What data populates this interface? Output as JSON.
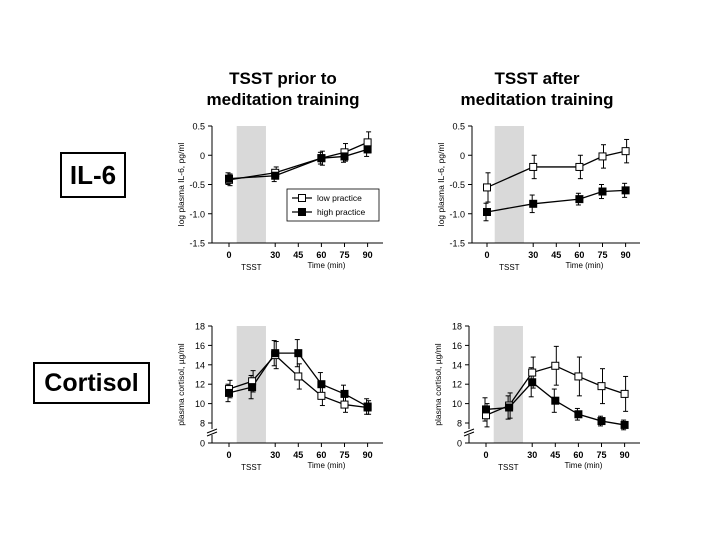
{
  "column_titles": {
    "left": [
      "TSST prior to",
      "meditation training"
    ],
    "right": [
      "TSST after",
      "meditation training"
    ]
  },
  "row_labels": {
    "il6": "IL-6",
    "cortisol": "Cortisol"
  },
  "chart_data": [
    {
      "id": "il6_prior",
      "type": "line",
      "ylabel": "log plasma IL-6, pg/ml",
      "xlabel": "Time (min)",
      "shade_label": "TSST",
      "x": [
        0,
        30,
        60,
        75,
        90
      ],
      "xticks": [
        "0",
        "30",
        "45",
        "60",
        "75",
        "90"
      ],
      "xtick_values": [
        0,
        30,
        45,
        60,
        75,
        90
      ],
      "ylim": [
        -1.5,
        0.5
      ],
      "yticks": [
        -1.5,
        -1.0,
        -0.5,
        0,
        0.5
      ],
      "ytick_labels": [
        "-1.5",
        "-1.0",
        "-0.5",
        "0",
        "0.5"
      ],
      "shade": [
        5,
        24
      ],
      "legend": [
        "low practice",
        "high practice"
      ],
      "series": [
        {
          "name": "low practice",
          "marker": "open-square",
          "values": [
            -0.42,
            -0.3,
            -0.05,
            0.05,
            0.22
          ],
          "errors": [
            0.1,
            0.1,
            0.12,
            0.15,
            0.18
          ]
        },
        {
          "name": "high practice",
          "marker": "filled-square",
          "values": [
            -0.4,
            -0.35,
            -0.05,
            -0.02,
            0.1
          ],
          "errors": [
            0.1,
            0.1,
            0.1,
            0.1,
            0.12
          ]
        }
      ]
    },
    {
      "id": "il6_after",
      "type": "line",
      "ylabel": "log plasma IL-6, pg/ml",
      "xlabel": "Time (min)",
      "shade_label": "TSST",
      "x": [
        0,
        30,
        60,
        75,
        90
      ],
      "xticks": [
        "0",
        "30",
        "45",
        "60",
        "75",
        "90"
      ],
      "xtick_values": [
        0,
        30,
        45,
        60,
        75,
        90
      ],
      "ylim": [
        -1.5,
        0.5
      ],
      "yticks": [
        -1.5,
        -1.0,
        -0.5,
        0,
        0.5
      ],
      "ytick_labels": [
        "-1.5",
        "-1.0",
        "-0.5",
        "0",
        "0.5"
      ],
      "shade": [
        5,
        24
      ],
      "series": [
        {
          "name": "low practice",
          "marker": "open-square",
          "values": [
            -0.55,
            -0.2,
            -0.2,
            -0.02,
            0.07
          ],
          "errors": [
            0.25,
            0.2,
            0.2,
            0.2,
            0.2
          ]
        },
        {
          "name": "high practice",
          "marker": "filled-square",
          "values": [
            -0.97,
            -0.83,
            -0.75,
            -0.62,
            -0.6
          ],
          "errors": [
            0.15,
            0.15,
            0.1,
            0.12,
            0.12
          ]
        }
      ]
    },
    {
      "id": "cortisol_prior",
      "type": "line",
      "ylabel": "plasma cortisol, µg/ml",
      "xlabel": "Time (min)",
      "shade_label": "TSST",
      "x": [
        0,
        15,
        30,
        45,
        60,
        75,
        90
      ],
      "xticks": [
        "0",
        "30",
        "45",
        "60",
        "75",
        "90"
      ],
      "xtick_values": [
        0,
        30,
        45,
        60,
        75,
        90
      ],
      "ylim": [
        6,
        18
      ],
      "yticks": [
        8,
        10,
        12,
        14,
        16,
        18
      ],
      "ytick_labels": [
        "8",
        "10",
        "12",
        "14",
        "16",
        "18"
      ],
      "y_break_label": "0",
      "shade": [
        5,
        24
      ],
      "series": [
        {
          "name": "low practice",
          "marker": "open-square",
          "values": [
            11.5,
            12.3,
            15.0,
            12.8,
            10.8,
            9.9,
            9.6
          ],
          "errors": [
            0.9,
            1.1,
            1.4,
            1.3,
            1.0,
            0.8,
            0.7
          ]
        },
        {
          "name": "high practice",
          "marker": "filled-square",
          "values": [
            11.1,
            11.7,
            15.2,
            15.2,
            12.0,
            11.0,
            9.7
          ],
          "errors": [
            0.9,
            1.2,
            1.3,
            1.4,
            1.2,
            0.9,
            0.8
          ]
        }
      ]
    },
    {
      "id": "cortisol_after",
      "type": "line",
      "ylabel": "plasma cortisol, µg/ml",
      "xlabel": "Time (min)",
      "shade_label": "TSST",
      "x": [
        0,
        15,
        30,
        45,
        60,
        75,
        90
      ],
      "xticks": [
        "0",
        "30",
        "45",
        "60",
        "75",
        "90"
      ],
      "xtick_values": [
        0,
        30,
        45,
        60,
        75,
        90
      ],
      "ylim": [
        6,
        18
      ],
      "yticks": [
        8,
        10,
        12,
        14,
        16,
        18
      ],
      "ytick_labels": [
        "8",
        "10",
        "12",
        "14",
        "16",
        "18"
      ],
      "y_break_label": "0",
      "shade": [
        5,
        24
      ],
      "series": [
        {
          "name": "low practice",
          "marker": "open-square",
          "values": [
            8.8,
            9.8,
            13.2,
            13.9,
            12.8,
            11.8,
            11.0
          ],
          "errors": [
            1.2,
            1.3,
            1.6,
            2.0,
            2.0,
            1.8,
            1.8
          ]
        },
        {
          "name": "high practice",
          "marker": "filled-square",
          "values": [
            9.4,
            9.6,
            12.2,
            10.3,
            8.9,
            8.2,
            7.8
          ],
          "errors": [
            1.2,
            1.2,
            1.5,
            1.2,
            0.6,
            0.5,
            0.5
          ]
        }
      ]
    }
  ]
}
